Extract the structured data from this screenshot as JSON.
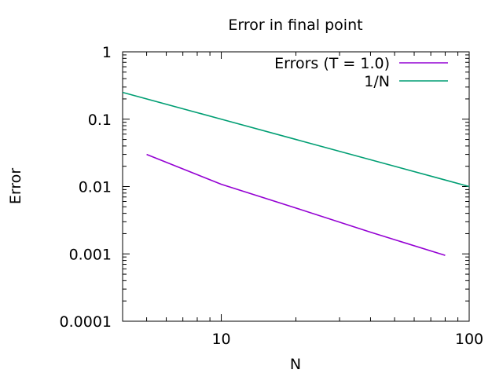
{
  "chart_data": {
    "type": "line",
    "title": "Error in final point",
    "xlabel": "N",
    "ylabel": "Error",
    "xscale": "log",
    "yscale": "log",
    "xlim": [
      4,
      100
    ],
    "ylim": [
      0.0001,
      1
    ],
    "grid": false,
    "legend_position": "top-right",
    "x_ticks": [
      {
        "value": 10,
        "label": "10"
      },
      {
        "value": 100,
        "label": "100"
      }
    ],
    "y_ticks": [
      {
        "value": 1,
        "label": "1"
      },
      {
        "value": 0.1,
        "label": "0.1"
      },
      {
        "value": 0.01,
        "label": "0.01"
      },
      {
        "value": 0.001,
        "label": "0.001"
      },
      {
        "value": 0.0001,
        "label": "0.0001"
      }
    ],
    "series": [
      {
        "name": "Errors (T = 1.0)",
        "color": "#9400d3",
        "x": [
          5,
          10,
          20,
          40,
          80
        ],
        "y": [
          0.03,
          0.0108,
          0.0048,
          0.0021,
          0.00095
        ]
      },
      {
        "name": "1/N",
        "color": "#009e73",
        "x": [
          4,
          10,
          20,
          40,
          80,
          100
        ],
        "y": [
          0.25,
          0.1,
          0.05,
          0.025,
          0.0125,
          0.01
        ]
      }
    ]
  }
}
